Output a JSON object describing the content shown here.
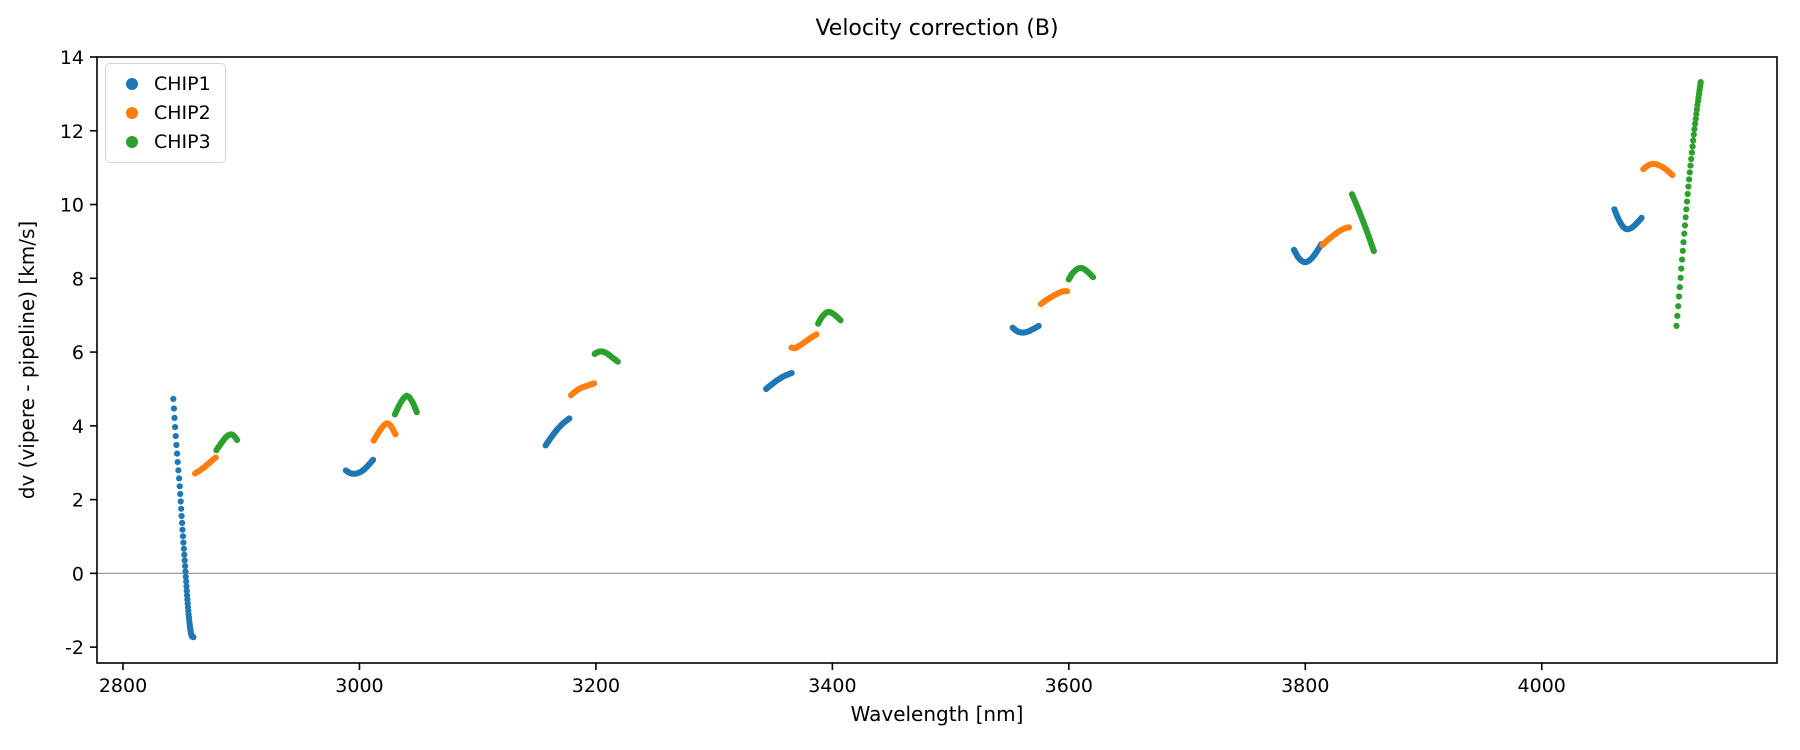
{
  "title": "Velocity correction (B)",
  "axes": {
    "xlabel": "Wavelength [nm]",
    "ylabel": "dv (vipere - pipeline) [km/s]",
    "x_ticks": [
      2800,
      3000,
      3200,
      3400,
      3600,
      3800,
      4000
    ],
    "y_ticks": [
      14,
      12,
      10,
      8,
      6,
      4,
      2,
      0,
      -2
    ],
    "xlim": [
      2778,
      4199
    ],
    "ylim": [
      -2.43,
      14.0
    ],
    "zero_line_y": 0,
    "zero_line_color": "#9a9a9a",
    "grid": "off"
  },
  "legend": {
    "position": "upper-left",
    "entries": [
      {
        "label": "CHIP1",
        "color": "#1f77b4"
      },
      {
        "label": "CHIP2",
        "color": "#ff7f0e"
      },
      {
        "label": "CHIP3",
        "color": "#2ca02c"
      }
    ]
  },
  "chart_data": {
    "type": "scatter",
    "title": "Velocity correction (B)",
    "xlabel": "Wavelength [nm]",
    "ylabel": "dv (vipere - pipeline) [km/s]",
    "xlim": [
      2778,
      4199
    ],
    "ylim": [
      -2.43,
      14.0
    ],
    "marker": "dot",
    "series": [
      {
        "name": "CHIP1",
        "color": "#1f77b4",
        "segments": [
          {
            "n": 48,
            "densify": "end",
            "power": 1.9,
            "points": [
              [
                2842.5,
                4.73
              ],
              [
                2844.2,
                3.9
              ],
              [
                2846.2,
                3.05
              ],
              [
                2848.3,
                2.2
              ],
              [
                2850.3,
                1.2
              ],
              [
                2852.2,
                0.35
              ],
              [
                2853.8,
                -0.4
              ],
              [
                2855.2,
                -1.0
              ],
              [
                2856.6,
                -1.45
              ],
              [
                2858.0,
                -1.68
              ],
              [
                2859.5,
                -1.73
              ]
            ]
          },
          {
            "n": 20,
            "points": [
              [
                2988.5,
                2.79
              ],
              [
                2992,
                2.72
              ],
              [
                2996,
                2.7
              ],
              [
                3001,
                2.75
              ],
              [
                3006,
                2.88
              ],
              [
                3011.5,
                3.08
              ]
            ]
          },
          {
            "n": 20,
            "points": [
              [
                3157.5,
                3.47
              ],
              [
                3162,
                3.68
              ],
              [
                3167,
                3.89
              ],
              [
                3172,
                4.06
              ],
              [
                3177.5,
                4.2
              ]
            ]
          },
          {
            "n": 20,
            "points": [
              [
                3344,
                5.0
              ],
              [
                3349,
                5.13
              ],
              [
                3354,
                5.25
              ],
              [
                3360,
                5.36
              ],
              [
                3365.5,
                5.43
              ]
            ]
          },
          {
            "n": 20,
            "points": [
              [
                3552.5,
                6.66
              ],
              [
                3556,
                6.57
              ],
              [
                3560,
                6.53
              ],
              [
                3564,
                6.54
              ],
              [
                3569,
                6.61
              ],
              [
                3574.5,
                6.71
              ]
            ]
          },
          {
            "n": 22,
            "points": [
              [
                3790.5,
                8.77
              ],
              [
                3794,
                8.57
              ],
              [
                3797.5,
                8.46
              ],
              [
                3801,
                8.44
              ],
              [
                3805,
                8.53
              ],
              [
                3809,
                8.69
              ],
              [
                3813.5,
                8.92
              ]
            ]
          },
          {
            "n": 22,
            "points": [
              [
                4061.5,
                9.87
              ],
              [
                4065,
                9.6
              ],
              [
                4068.5,
                9.41
              ],
              [
                4072,
                9.33
              ],
              [
                4076,
                9.37
              ],
              [
                4080,
                9.48
              ],
              [
                4084.5,
                9.64
              ]
            ]
          }
        ]
      },
      {
        "name": "CHIP2",
        "color": "#ff7f0e",
        "segments": [
          {
            "n": 18,
            "points": [
              [
                2861,
                2.71
              ],
              [
                2864,
                2.77
              ],
              [
                2868,
                2.86
              ],
              [
                2872,
                2.97
              ],
              [
                2876,
                3.08
              ],
              [
                2878.5,
                3.14
              ]
            ]
          },
          {
            "n": 18,
            "points": [
              [
                3012,
                3.6
              ],
              [
                3016,
                3.81
              ],
              [
                3020,
                3.99
              ],
              [
                3023.5,
                4.07
              ],
              [
                3027,
                3.97
              ],
              [
                3030.5,
                3.77
              ]
            ]
          },
          {
            "n": 18,
            "points": [
              [
                3179,
                4.83
              ],
              [
                3183,
                4.94
              ],
              [
                3187,
                5.02
              ],
              [
                3192,
                5.08
              ],
              [
                3198.5,
                5.15
              ]
            ]
          },
          {
            "n": 18,
            "points": [
              [
                3365.5,
                6.12
              ],
              [
                3368.5,
                6.11
              ],
              [
                3372,
                6.17
              ],
              [
                3377,
                6.28
              ],
              [
                3382,
                6.39
              ],
              [
                3386.5,
                6.48
              ]
            ]
          },
          {
            "n": 18,
            "points": [
              [
                3576.5,
                7.3
              ],
              [
                3580,
                7.39
              ],
              [
                3585,
                7.49
              ],
              [
                3590,
                7.58
              ],
              [
                3594.5,
                7.64
              ],
              [
                3598.5,
                7.65
              ]
            ]
          },
          {
            "n": 18,
            "points": [
              [
                3814.5,
                8.9
              ],
              [
                3818,
                9.01
              ],
              [
                3823,
                9.14
              ],
              [
                3828,
                9.26
              ],
              [
                3833,
                9.35
              ],
              [
                3837,
                9.38
              ]
            ]
          },
          {
            "n": 18,
            "points": [
              [
                4086,
                10.96
              ],
              [
                4089.5,
                11.05
              ],
              [
                4093.5,
                11.1
              ],
              [
                4098,
                11.08
              ],
              [
                4103,
                11.0
              ],
              [
                4107,
                10.9
              ],
              [
                4110.5,
                10.8
              ]
            ]
          }
        ]
      },
      {
        "name": "CHIP3",
        "color": "#2ca02c",
        "segments": [
          {
            "n": 18,
            "points": [
              [
                2879,
                3.34
              ],
              [
                2882,
                3.48
              ],
              [
                2885,
                3.61
              ],
              [
                2888,
                3.72
              ],
              [
                2891.5,
                3.77
              ],
              [
                2894,
                3.72
              ],
              [
                2896.5,
                3.62
              ]
            ]
          },
          {
            "n": 18,
            "points": [
              [
                3030,
                4.31
              ],
              [
                3034,
                4.58
              ],
              [
                3038,
                4.77
              ],
              [
                3041,
                4.81
              ],
              [
                3045,
                4.63
              ],
              [
                3048.5,
                4.37
              ]
            ]
          },
          {
            "n": 18,
            "points": [
              [
                3199,
                5.95
              ],
              [
                3202.5,
                6.01
              ],
              [
                3206,
                6.01
              ],
              [
                3210,
                5.95
              ],
              [
                3214,
                5.85
              ],
              [
                3218.5,
                5.74
              ]
            ]
          },
          {
            "n": 18,
            "points": [
              [
                3388,
                6.77
              ],
              [
                3391,
                6.94
              ],
              [
                3394.5,
                7.06
              ],
              [
                3397.5,
                7.09
              ],
              [
                3401,
                7.03
              ],
              [
                3404,
                6.95
              ],
              [
                3407,
                6.86
              ]
            ]
          },
          {
            "n": 18,
            "points": [
              [
                3600,
                7.97
              ],
              [
                3603,
                8.13
              ],
              [
                3607,
                8.25
              ],
              [
                3610.5,
                8.28
              ],
              [
                3614,
                8.23
              ],
              [
                3617.5,
                8.13
              ],
              [
                3620.5,
                8.03
              ]
            ]
          },
          {
            "n": 26,
            "points": [
              [
                3839.5,
                10.28
              ],
              [
                3843,
                10.02
              ],
              [
                3847,
                9.7
              ],
              [
                3851,
                9.37
              ],
              [
                3854.5,
                9.06
              ],
              [
                3858,
                8.74
              ]
            ]
          },
          {
            "n": 40,
            "densify": "end",
            "power": 1.6,
            "points": [
              [
                4114,
                6.71
              ],
              [
                4117,
                7.85
              ],
              [
                4120,
                9.0
              ],
              [
                4123.5,
                10.3
              ],
              [
                4127,
                11.4
              ],
              [
                4130.5,
                12.4
              ],
              [
                4134.5,
                13.32
              ]
            ]
          }
        ]
      }
    ]
  }
}
